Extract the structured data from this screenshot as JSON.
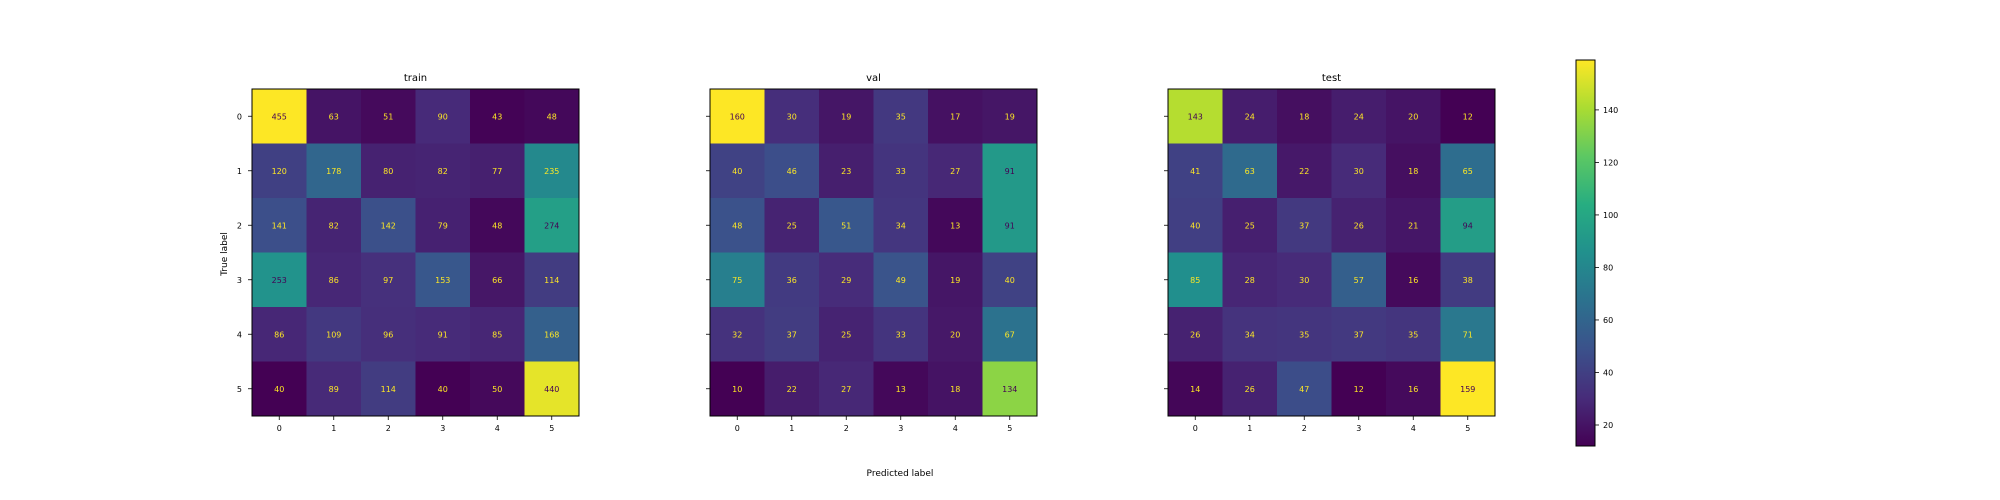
{
  "chart_data": {
    "type": "heatmap",
    "xlabel": "Predicted label",
    "ylabel": "True label",
    "tick_labels": [
      "0",
      "1",
      "2",
      "3",
      "4",
      "5"
    ],
    "colormap": "viridis",
    "grid": false,
    "colorbar": {
      "range": [
        12,
        159
      ],
      "ticks": [
        20,
        40,
        60,
        80,
        100,
        120,
        140
      ],
      "placement": "right"
    },
    "panels": [
      {
        "title": "train",
        "matrix": [
          [
            455,
            63,
            51,
            90,
            43,
            48
          ],
          [
            120,
            178,
            80,
            82,
            77,
            235
          ],
          [
            141,
            82,
            142,
            79,
            48,
            274
          ],
          [
            253,
            86,
            97,
            153,
            66,
            114
          ],
          [
            86,
            109,
            96,
            91,
            85,
            168
          ],
          [
            40,
            89,
            114,
            40,
            50,
            440
          ]
        ]
      },
      {
        "title": "val",
        "matrix": [
          [
            160,
            30,
            19,
            35,
            17,
            19
          ],
          [
            40,
            46,
            23,
            33,
            27,
            91
          ],
          [
            48,
            25,
            51,
            34,
            13,
            91
          ],
          [
            75,
            36,
            29,
            49,
            19,
            40
          ],
          [
            32,
            37,
            25,
            33,
            20,
            67
          ],
          [
            10,
            22,
            27,
            13,
            18,
            134
          ]
        ]
      },
      {
        "title": "test",
        "matrix": [
          [
            143,
            24,
            18,
            24,
            20,
            12
          ],
          [
            41,
            63,
            22,
            30,
            18,
            65
          ],
          [
            40,
            25,
            37,
            26,
            21,
            94
          ],
          [
            85,
            28,
            30,
            57,
            16,
            38
          ],
          [
            26,
            34,
            35,
            37,
            35,
            71
          ],
          [
            14,
            26,
            47,
            12,
            16,
            159
          ]
        ]
      }
    ]
  }
}
